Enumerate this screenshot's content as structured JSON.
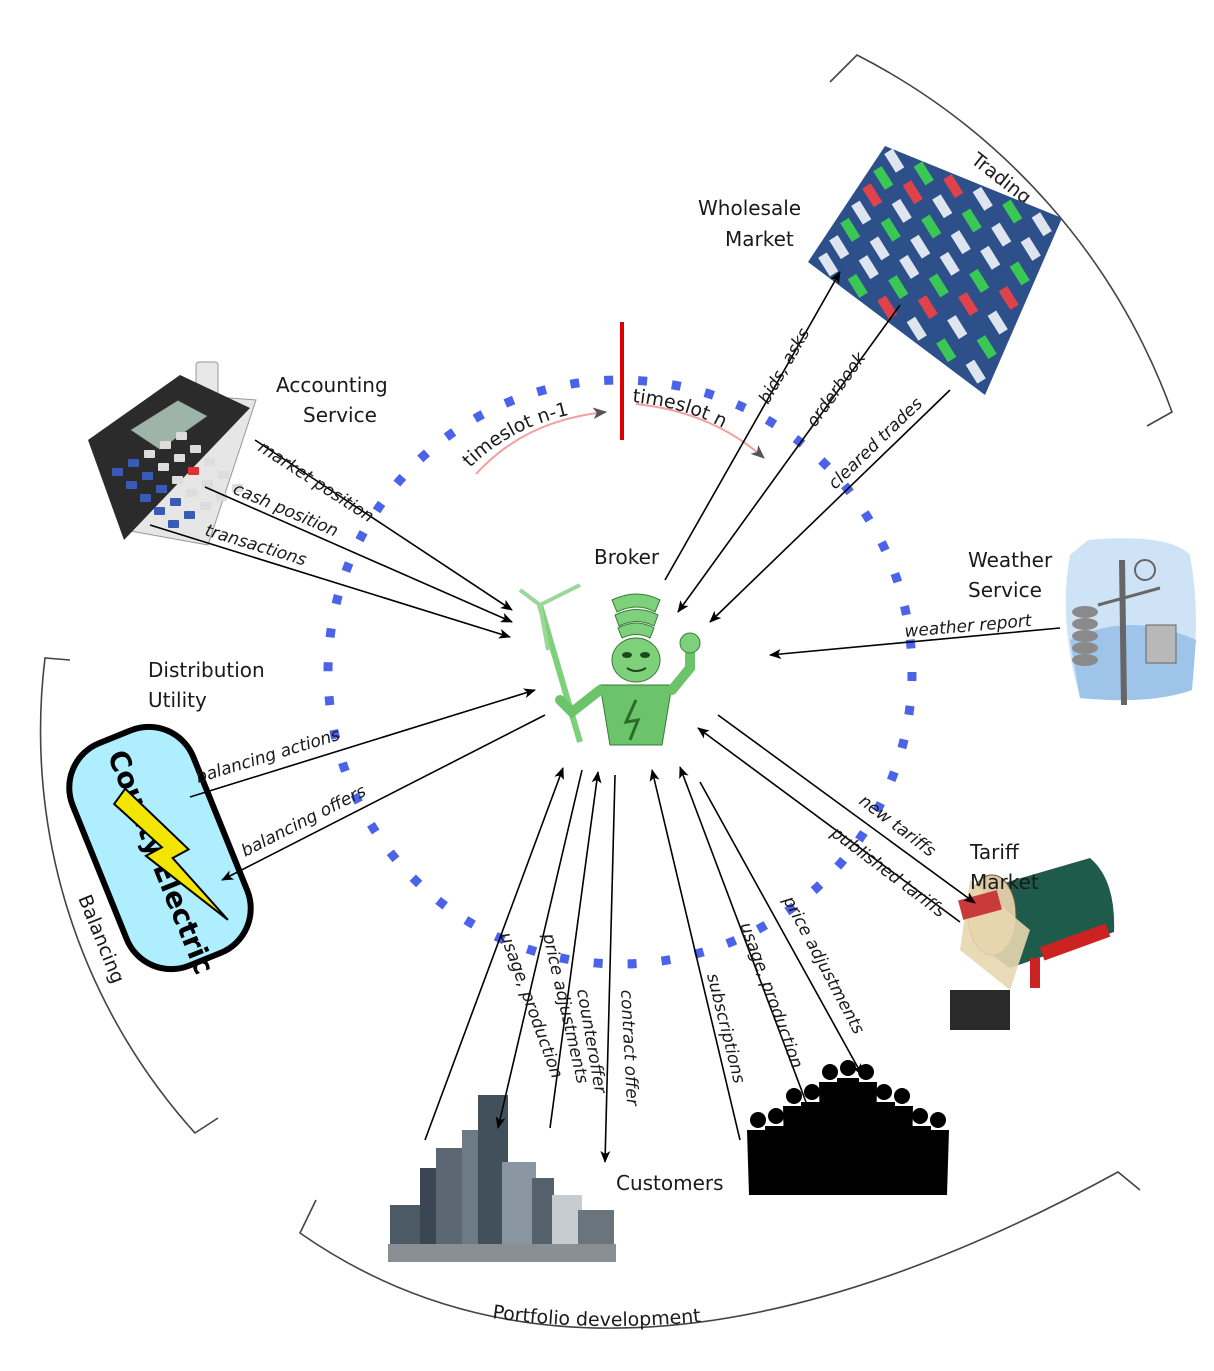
{
  "nodes": {
    "broker": "Broker",
    "wholesale_line1": "Wholesale",
    "wholesale_line2": "Market",
    "accounting_line1": "Accounting",
    "accounting_line2": "Service",
    "weather_line1": "Weather",
    "weather_line2": "Service",
    "distribution_line1": "Distribution",
    "distribution_line2": "Utility",
    "tariff_line1": "Tariff",
    "tariff_line2": "Market",
    "customers": "Customers",
    "county_electric_logo": "County Electric"
  },
  "regions": {
    "trading": "Trading",
    "balancing": "Balancing",
    "portfolio": "Portfolio development"
  },
  "timeslots": {
    "previous": "timeslot n-1",
    "current": "timeslot n"
  },
  "flows": {
    "bids_asks": "bids, asks",
    "orderbook": "orderbook",
    "cleared_trades": "cleared trades",
    "market_position": "market position",
    "cash_position": "cash position",
    "transactions": "transactions",
    "weather_report": "weather report",
    "balancing_actions": "balancing actions",
    "balancing_offers": "balancing offers",
    "new_tariffs": "new tariffs",
    "published_tariffs": "published tariffs",
    "usage_production_business": "usage, production",
    "price_adjustments_business": "price adjustments",
    "counteroffer": "counteroffer",
    "contract_offer": "contract offer",
    "subscriptions": "subscriptions",
    "usage_production_people": "usage, production",
    "price_adjustments_people": "price adjustments"
  },
  "colors": {
    "timeslot_dots": "#4a63e8",
    "timeslot_divider": "#dd0000",
    "timeslot_arc": "#f2a0a0",
    "broker_robot": "#7fd07a",
    "county_electric_fill": "#aeeeff",
    "lightning": "#f2e600",
    "mailbox": "#1f5b4a",
    "market_board": "#2d4f8a"
  },
  "icons": [
    "calculator-icon",
    "market-board-icon",
    "weather-station-icon",
    "county-electric-logo-icon",
    "mailbox-icon",
    "city-skyline-icon",
    "crowd-silhouette-icon",
    "broker-robot-icon"
  ]
}
